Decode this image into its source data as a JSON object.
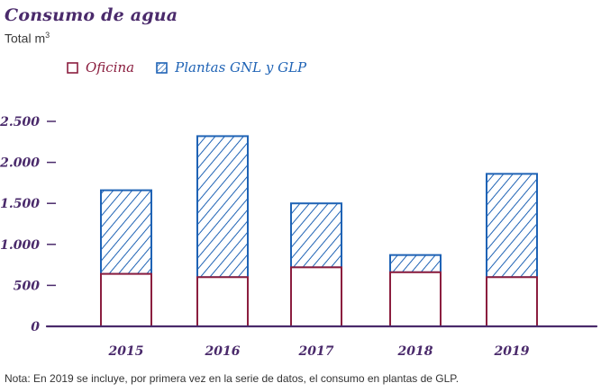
{
  "header": {
    "title": "Consumo de agua",
    "subtitle_text": "Total m",
    "subtitle_sup": "3"
  },
  "legend": [
    {
      "label": "Oficina",
      "color": "#8b1e3f",
      "pattern": "outline"
    },
    {
      "label": "Plantas GNL y GLP",
      "color": "#1f63b5",
      "pattern": "hatched"
    }
  ],
  "footer": {
    "note": "Nota: En 2019 se incluye, por primera vez en la serie de datos, el consumo en plantas de GLP."
  },
  "chart_data": {
    "type": "bar",
    "stacked": true,
    "categories": [
      "2015",
      "2016",
      "2017",
      "2018",
      "2019"
    ],
    "series": [
      {
        "name": "Oficina",
        "values": [
          640,
          600,
          720,
          660,
          600
        ]
      },
      {
        "name": "Plantas GNL y GLP",
        "values": [
          1020,
          1720,
          780,
          210,
          1260
        ]
      }
    ],
    "yticks": [
      0,
      500,
      1000,
      1500,
      2000,
      2500
    ],
    "ytick_labels": [
      "0",
      "500",
      "1.000",
      "1.500",
      "2.000",
      "2.500"
    ],
    "ylim": [
      0,
      2500
    ],
    "xlabel": "",
    "ylabel": "",
    "grid": false,
    "colors": {
      "oficina": "#8b1e3f",
      "plantas": "#1f63b5",
      "axis": "#4a2a6b"
    }
  }
}
